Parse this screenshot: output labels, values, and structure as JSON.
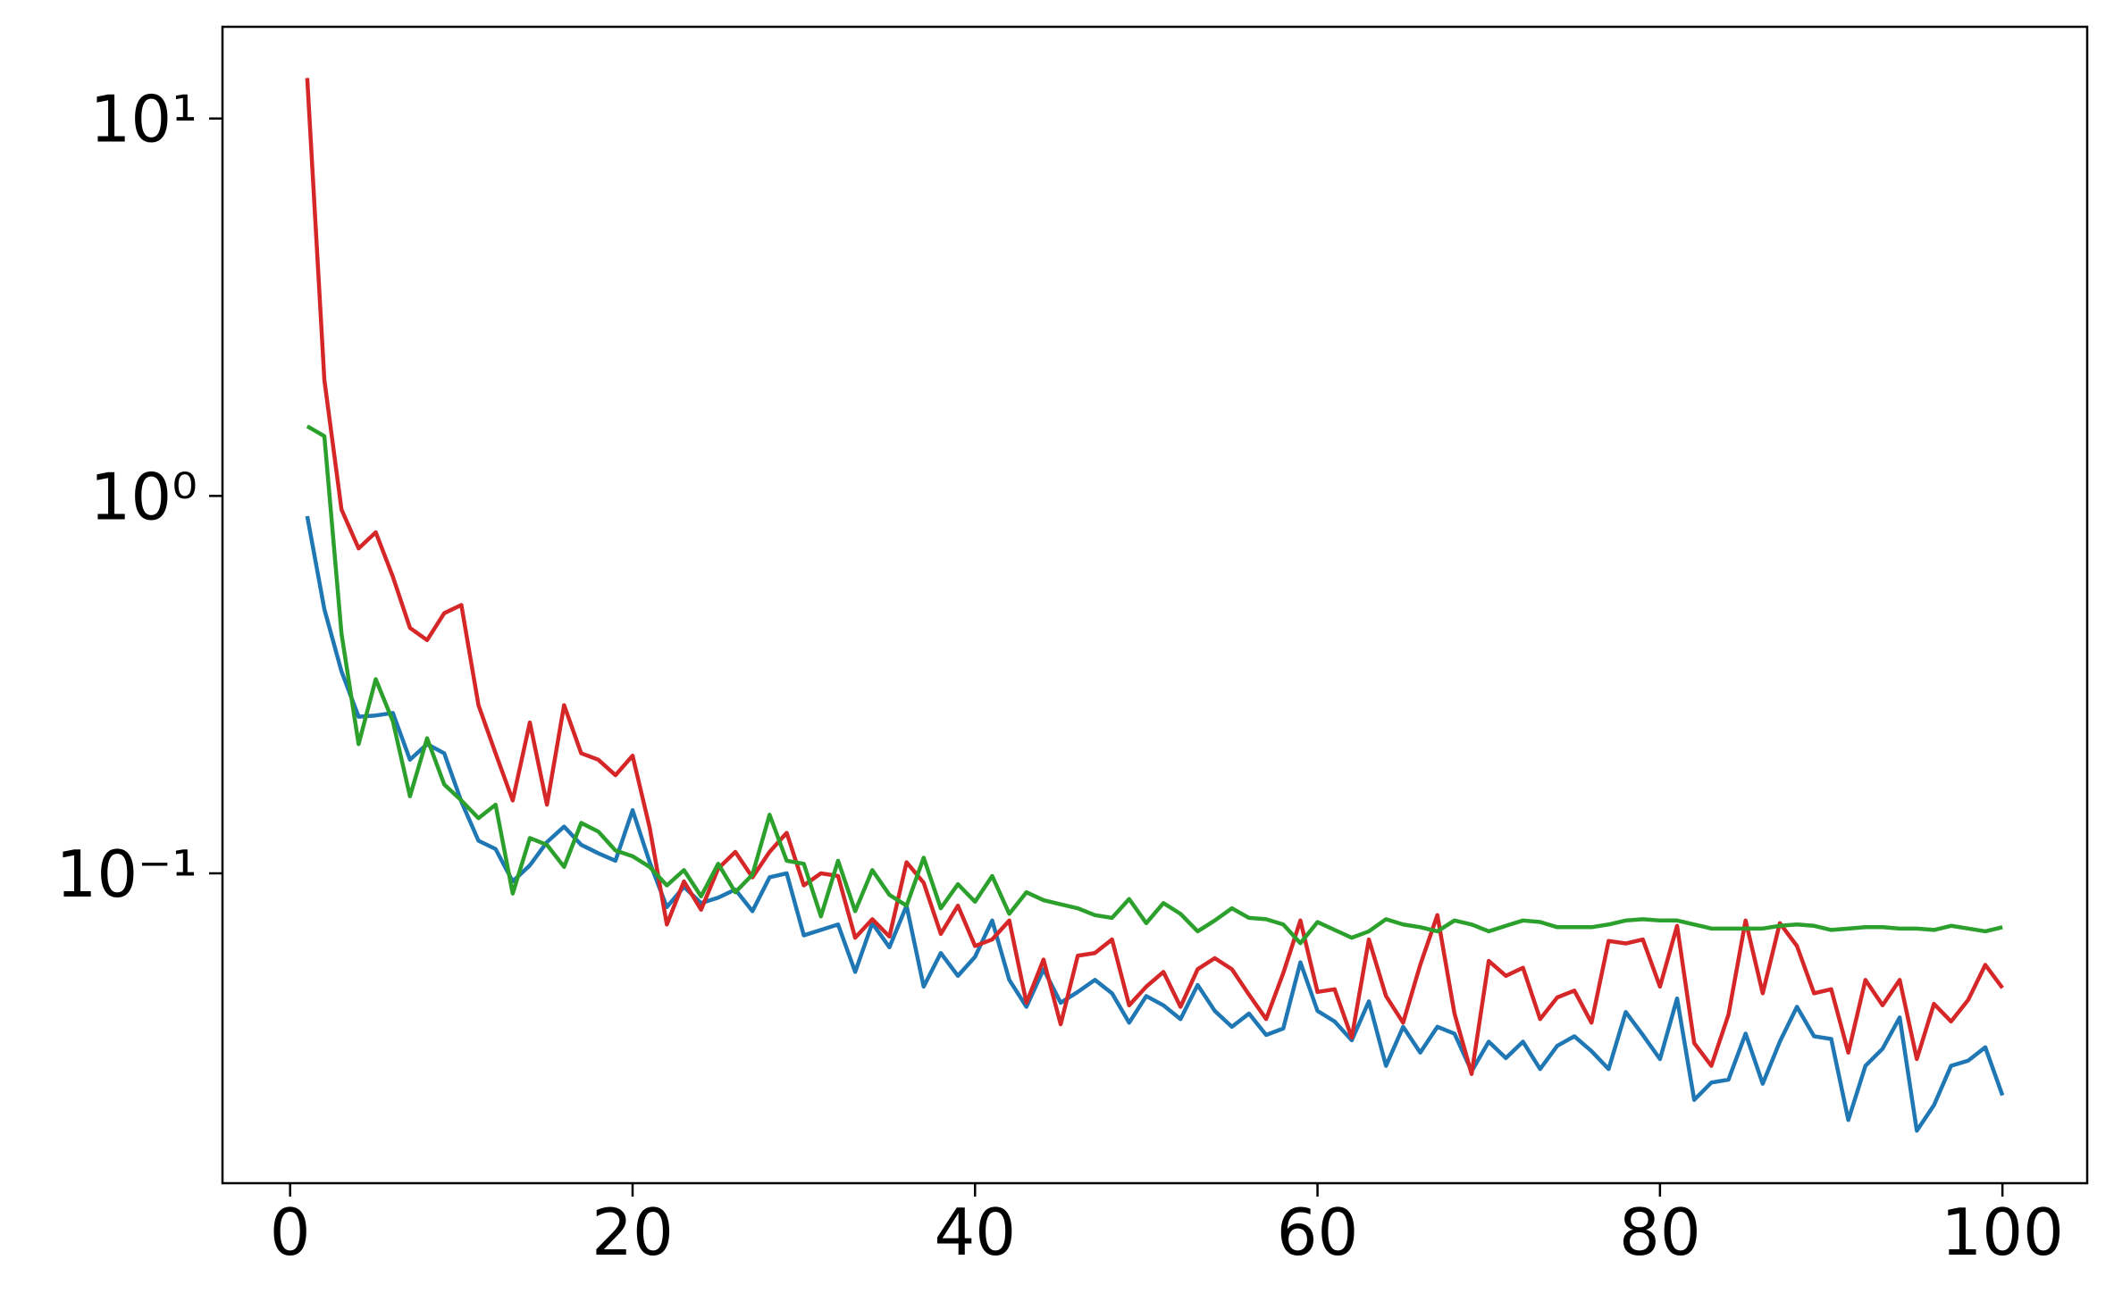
{
  "chart_data": {
    "type": "line",
    "yscale": "log",
    "xlim": [
      -3.95,
      104.95
    ],
    "ylim": [
      0.0151,
      17.5
    ],
    "xticks": [
      0,
      20,
      40,
      60,
      80,
      100
    ],
    "yticks": [
      {
        "value": 0.1,
        "label": "10⁻¹"
      },
      {
        "value": 1,
        "label": "10⁰"
      },
      {
        "value": 10,
        "label": "10¹"
      }
    ],
    "x": [
      1,
      2,
      3,
      4,
      5,
      6,
      7,
      8,
      9,
      10,
      11,
      12,
      13,
      14,
      15,
      16,
      17,
      18,
      19,
      20,
      21,
      22,
      23,
      24,
      25,
      26,
      27,
      28,
      29,
      30,
      31,
      32,
      33,
      34,
      35,
      36,
      37,
      38,
      39,
      40,
      41,
      42,
      43,
      44,
      45,
      46,
      47,
      48,
      49,
      50,
      51,
      52,
      53,
      54,
      55,
      56,
      57,
      58,
      59,
      60,
      61,
      62,
      63,
      64,
      65,
      66,
      67,
      68,
      69,
      70,
      71,
      72,
      73,
      74,
      75,
      76,
      77,
      78,
      79,
      80,
      81,
      82,
      83,
      84,
      85,
      86,
      87,
      88,
      89,
      90,
      91,
      92,
      93,
      94,
      95,
      96,
      97,
      98,
      99,
      100
    ],
    "series": [
      {
        "color": "#1f77b4",
        "values": [
          0.884,
          0.501,
          0.343,
          0.26,
          0.262,
          0.266,
          0.2,
          0.22,
          0.208,
          0.155,
          0.122,
          0.116,
          0.0952,
          0.105,
          0.121,
          0.133,
          0.119,
          0.113,
          0.108,
          0.147,
          0.107,
          0.0814,
          0.0921,
          0.0834,
          0.0862,
          0.0906,
          0.0794,
          0.0976,
          0.1,
          0.0685,
          0.0708,
          0.0732,
          0.0548,
          0.0738,
          0.0637,
          0.0821,
          0.0501,
          0.0615,
          0.0535,
          0.0601,
          0.075,
          0.0522,
          0.0443,
          0.0557,
          0.0454,
          0.0485,
          0.0522,
          0.0481,
          0.0402,
          0.0473,
          0.0447,
          0.0411,
          0.0506,
          0.0432,
          0.0392,
          0.0425,
          0.0373,
          0.0388,
          0.0581,
          0.0432,
          0.0405,
          0.0361,
          0.0458,
          0.0309,
          0.0392,
          0.0335,
          0.0392,
          0.0376,
          0.0299,
          0.0358,
          0.0324,
          0.0358,
          0.0303,
          0.0349,
          0.037,
          0.0338,
          0.0303,
          0.0429,
          0.0373,
          0.0322,
          0.0466,
          0.0251,
          0.0279,
          0.0284,
          0.0376,
          0.0277,
          0.0358,
          0.0443,
          0.037,
          0.0364,
          0.0222,
          0.0309,
          0.0343,
          0.0415,
          0.0208,
          0.0243,
          0.0309,
          0.0319,
          0.0346,
          0.0258
        ]
      },
      {
        "color": "#d62728",
        "values": [
          12.8,
          2.03,
          0.921,
          0.726,
          0.801,
          0.611,
          0.447,
          0.415,
          0.489,
          0.514,
          0.279,
          0.208,
          0.156,
          0.251,
          0.152,
          0.279,
          0.208,
          0.2,
          0.182,
          0.205,
          0.132,
          0.0732,
          0.0952,
          0.0801,
          0.103,
          0.114,
          0.0976,
          0.114,
          0.128,
          0.0929,
          0.1,
          0.0984,
          0.0675,
          0.0756,
          0.068,
          0.107,
          0.0944,
          0.0691,
          0.0821,
          0.0642,
          0.0668,
          0.075,
          0.0454,
          0.0591,
          0.0398,
          0.0605,
          0.0615,
          0.0668,
          0.0447,
          0.0501,
          0.0548,
          0.0443,
          0.0557,
          0.0596,
          0.0557,
          0.0477,
          0.0411,
          0.0544,
          0.075,
          0.0485,
          0.0493,
          0.0367,
          0.0668,
          0.0473,
          0.0402,
          0.0572,
          0.0775,
          0.0425,
          0.0294,
          0.0586,
          0.0535,
          0.0562,
          0.0411,
          0.0469,
          0.0489,
          0.0402,
          0.0662,
          0.0652,
          0.0668,
          0.0501,
          0.0726,
          0.0355,
          0.0309,
          0.0422,
          0.075,
          0.0481,
          0.0738,
          0.0642,
          0.0481,
          0.0493,
          0.0335,
          0.0522,
          0.0447,
          0.0522,
          0.0322,
          0.0451,
          0.0405,
          0.0462,
          0.0572,
          0.0497
        ]
      },
      {
        "color": "#2ca02c",
        "values": [
          1.53,
          1.44,
          0.432,
          0.22,
          0.327,
          0.253,
          0.16,
          0.228,
          0.172,
          0.156,
          0.14,
          0.152,
          0.0884,
          0.124,
          0.119,
          0.104,
          0.136,
          0.129,
          0.115,
          0.111,
          0.104,
          0.0929,
          0.102,
          0.0869,
          0.106,
          0.0891,
          0.0992,
          0.143,
          0.108,
          0.106,
          0.0769,
          0.108,
          0.0794,
          0.102,
          0.0877,
          0.0821,
          0.11,
          0.0808,
          0.0936,
          0.0841,
          0.0984,
          0.0781,
          0.0891,
          0.0849,
          0.0828,
          0.0808,
          0.0775,
          0.0762,
          0.0855,
          0.0738,
          0.0834,
          0.0781,
          0.0702,
          0.075,
          0.0808,
          0.0762,
          0.0756,
          0.0732,
          0.0653,
          0.0743,
          0.0708,
          0.0675,
          0.0702,
          0.0756,
          0.0732,
          0.072,
          0.0702,
          0.075,
          0.0732,
          0.0702,
          0.0726,
          0.075,
          0.0743,
          0.072,
          0.072,
          0.072,
          0.0732,
          0.075,
          0.0756,
          0.075,
          0.075,
          0.0732,
          0.0714,
          0.0714,
          0.0714,
          0.0714,
          0.0726,
          0.0732,
          0.0726,
          0.0708,
          0.0714,
          0.072,
          0.072,
          0.0714,
          0.0714,
          0.0708,
          0.0726,
          0.0714,
          0.0702,
          0.072
        ]
      }
    ]
  }
}
